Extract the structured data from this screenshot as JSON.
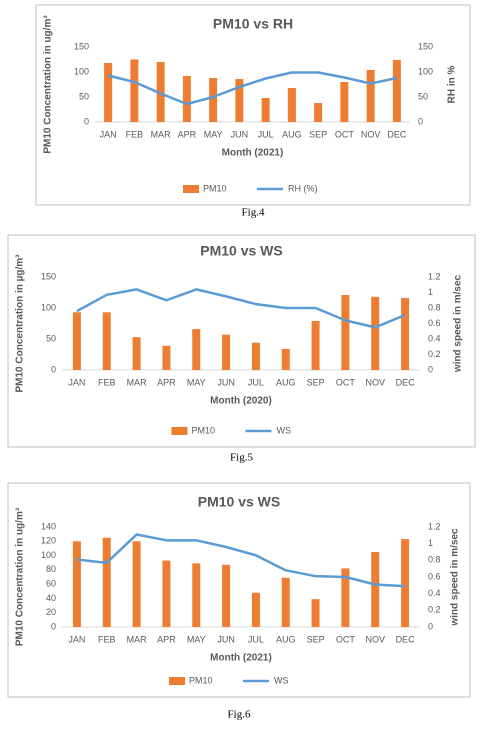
{
  "chart_data": [
    {
      "type": "combo",
      "title": "PM10 vs RH",
      "caption": "Fig.4",
      "x_label": "Month (2021)",
      "y_label": "PM10 Concentration in ug/m³",
      "y2_label": "RH in %",
      "categories": [
        "JAN",
        "FEB",
        "MAR",
        "APR",
        "MAY",
        "JUN",
        "JUL",
        "AUG",
        "SEP",
        "OCT",
        "NOV",
        "DEC"
      ],
      "series": [
        {
          "name": "PM10",
          "type": "bar",
          "color": "#ed7d31",
          "values": [
            118,
            125,
            120,
            92,
            88,
            86,
            48,
            68,
            38,
            80,
            104,
            124
          ]
        },
        {
          "name": "RH (%)",
          "type": "line",
          "axis": "y2",
          "color": "#5b9bd5",
          "values": [
            93,
            80,
            57,
            36,
            50,
            70,
            87,
            99,
            99,
            89,
            77,
            88
          ]
        }
      ],
      "ylim": [
        0,
        150
      ],
      "yticks": [
        0,
        50,
        100,
        150
      ],
      "y2lim": [
        0,
        150
      ],
      "y2ticks": [
        0,
        50,
        100,
        150
      ],
      "legend": "bottom"
    },
    {
      "type": "combo",
      "title": "PM10 vs WS",
      "caption": "Fig.5",
      "x_label": "Month (2020)",
      "y_label": "PM10 Concentration in µg/m³",
      "y2_label": "wind speed in m/sec",
      "categories": [
        "JAN",
        "FEB",
        "MAR",
        "APR",
        "MAY",
        "JUN",
        "JUL",
        "AUG",
        "SEP",
        "OCT",
        "NOV",
        "DEC"
      ],
      "series": [
        {
          "name": "PM10",
          "type": "bar",
          "color": "#ed7d31",
          "values": [
            93,
            93,
            53,
            39,
            66,
            57,
            44,
            34,
            79,
            121,
            118,
            116
          ]
        },
        {
          "name": "WS",
          "type": "line",
          "axis": "y2",
          "color": "#5b9bd5",
          "values": [
            0.76,
            0.97,
            1.04,
            0.9,
            1.04,
            0.95,
            0.85,
            0.8,
            0.8,
            0.64,
            0.55,
            0.71
          ]
        }
      ],
      "ylim": [
        0,
        150
      ],
      "yticks": [
        0,
        50,
        100,
        150
      ],
      "y2lim": [
        0,
        1.2
      ],
      "y2ticks": [
        0,
        0.2,
        0.4,
        0.6,
        0.8,
        1,
        1.2
      ],
      "legend": "bottom"
    },
    {
      "type": "combo",
      "title": "PM10 vs WS",
      "caption": "Fig.6",
      "x_label": "Month (2021)",
      "y_label": "PM10 Concentration in ug/m³",
      "y2_label": "wind speed in m/sec",
      "categories": [
        "JAN",
        "FEB",
        "MAR",
        "APR",
        "MAY",
        "JUN",
        "JUL",
        "AUG",
        "SEP",
        "OCT",
        "NOV",
        "DEC"
      ],
      "series": [
        {
          "name": "PM10",
          "type": "bar",
          "color": "#ed7d31",
          "values": [
            120,
            125,
            120,
            93,
            89,
            87,
            48,
            69,
            39,
            82,
            105,
            123
          ]
        },
        {
          "name": "WS",
          "type": "line",
          "axis": "y2",
          "color": "#5b9bd5",
          "values": [
            0.81,
            0.77,
            1.11,
            1.04,
            1.04,
            0.96,
            0.86,
            0.68,
            0.61,
            0.6,
            0.51,
            0.49
          ]
        }
      ],
      "ylim": [
        0,
        140
      ],
      "yticks": [
        0,
        20,
        40,
        60,
        80,
        100,
        120,
        140
      ],
      "y2lim": [
        0,
        1.2
      ],
      "y2ticks": [
        0,
        0.2,
        0.4,
        0.6,
        0.8,
        1,
        1.2
      ],
      "legend": "bottom"
    }
  ]
}
